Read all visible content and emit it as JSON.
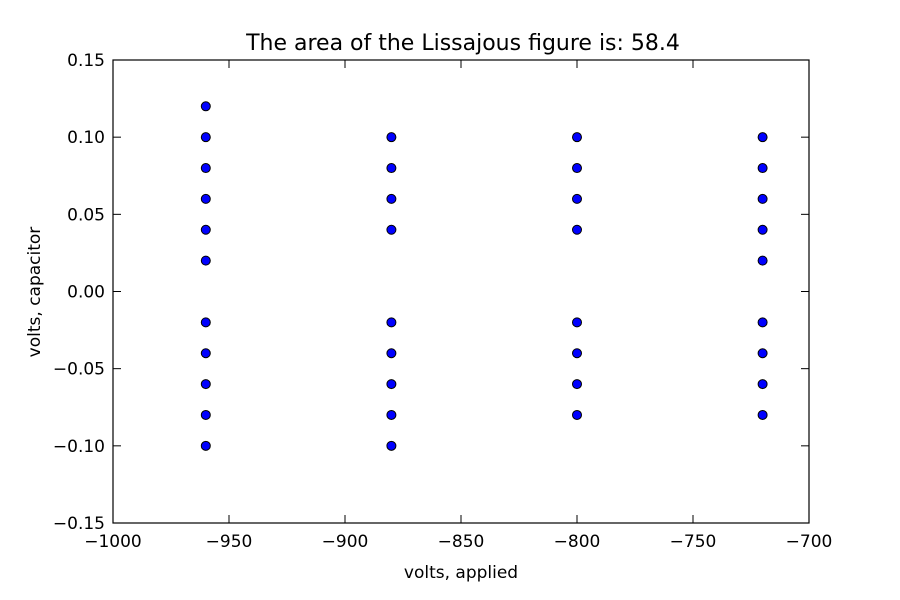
{
  "chart_data": {
    "type": "scatter",
    "title": "The area of the Lissajous figure is: 58.4",
    "xlabel": "volts, applied",
    "ylabel": "volts, capacitor",
    "xlim": [
      -1000,
      -700
    ],
    "ylim": [
      -0.15,
      0.15
    ],
    "x_ticks": [
      -1000,
      -950,
      -900,
      -850,
      -800,
      -750,
      -700
    ],
    "x_tick_labels": [
      "−1000",
      "−950",
      "−900",
      "−850",
      "−800",
      "−750",
      "−700"
    ],
    "y_ticks": [
      -0.15,
      -0.1,
      -0.05,
      0.0,
      0.05,
      0.1,
      0.15
    ],
    "y_tick_labels": [
      "−0.15",
      "−0.10",
      "−0.05",
      "0.00",
      "0.05",
      "0.10",
      "0.15"
    ],
    "grid": false,
    "marker_color": "#0000ff",
    "points": [
      {
        "x": -960,
        "y": 0.12
      },
      {
        "x": -960,
        "y": 0.1
      },
      {
        "x": -960,
        "y": 0.08
      },
      {
        "x": -960,
        "y": 0.06
      },
      {
        "x": -960,
        "y": 0.04
      },
      {
        "x": -960,
        "y": 0.02
      },
      {
        "x": -960,
        "y": -0.02
      },
      {
        "x": -960,
        "y": -0.04
      },
      {
        "x": -960,
        "y": -0.06
      },
      {
        "x": -960,
        "y": -0.08
      },
      {
        "x": -960,
        "y": -0.1
      },
      {
        "x": -880,
        "y": 0.1
      },
      {
        "x": -880,
        "y": 0.08
      },
      {
        "x": -880,
        "y": 0.06
      },
      {
        "x": -880,
        "y": 0.04
      },
      {
        "x": -880,
        "y": -0.02
      },
      {
        "x": -880,
        "y": -0.04
      },
      {
        "x": -880,
        "y": -0.06
      },
      {
        "x": -880,
        "y": -0.08
      },
      {
        "x": -880,
        "y": -0.1
      },
      {
        "x": -800,
        "y": 0.1
      },
      {
        "x": -800,
        "y": 0.08
      },
      {
        "x": -800,
        "y": 0.06
      },
      {
        "x": -800,
        "y": 0.04
      },
      {
        "x": -800,
        "y": -0.02
      },
      {
        "x": -800,
        "y": -0.04
      },
      {
        "x": -800,
        "y": -0.06
      },
      {
        "x": -800,
        "y": -0.08
      },
      {
        "x": -720,
        "y": 0.1
      },
      {
        "x": -720,
        "y": 0.08
      },
      {
        "x": -720,
        "y": 0.06
      },
      {
        "x": -720,
        "y": 0.04
      },
      {
        "x": -720,
        "y": 0.02
      },
      {
        "x": -720,
        "y": -0.02
      },
      {
        "x": -720,
        "y": -0.04
      },
      {
        "x": -720,
        "y": -0.06
      },
      {
        "x": -720,
        "y": -0.08
      }
    ]
  }
}
